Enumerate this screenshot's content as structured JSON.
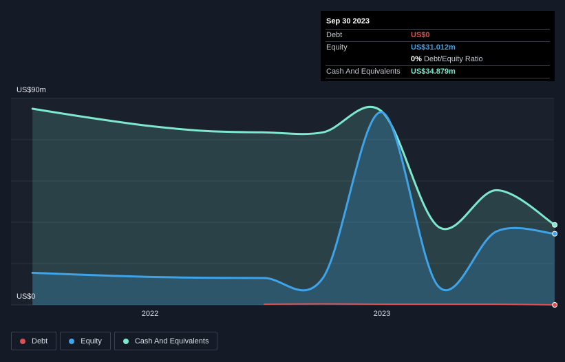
{
  "tooltip": {
    "date": "Sep 30 2023",
    "rows": {
      "debt": {
        "label": "Debt",
        "value": "US$0"
      },
      "equity": {
        "label": "Equity",
        "value": "US$31.012m"
      },
      "ratio": {
        "value": "0%",
        "label": "Debt/Equity Ratio"
      },
      "cash": {
        "label": "Cash And Equivalents",
        "value": "US$34.879m"
      }
    }
  },
  "axis": {
    "y_top_label": "US$90m",
    "y_bottom_label": "US$0",
    "x_ticks": [
      "2022",
      "2023"
    ]
  },
  "legend": {
    "debt": "Debt",
    "equity": "Equity",
    "cash": "Cash And Equivalents"
  },
  "colors": {
    "debt": "#e04f4f",
    "equity": "#3ea3e8",
    "cash": "#7ee8cf",
    "background": "#151b26"
  },
  "chart_data": {
    "type": "area",
    "x_type": "date",
    "ylim": [
      0,
      90
    ],
    "y_unit": "US$m",
    "x_ticks": [
      "2022",
      "2023"
    ],
    "x": [
      "2021-06-30",
      "2021-09-30",
      "2021-12-31",
      "2022-03-31",
      "2022-06-30",
      "2022-09-30",
      "2022-12-31",
      "2023-03-31",
      "2023-06-30",
      "2023-09-30"
    ],
    "series": [
      {
        "name": "Debt",
        "values": [
          null,
          null,
          null,
          null,
          0.3,
          0.5,
          0.3,
          0.3,
          0.3,
          0
        ]
      },
      {
        "name": "Equity",
        "values": [
          14,
          13,
          12.2,
          11.8,
          11.7,
          11.7,
          84,
          8,
          32,
          31.012
        ]
      },
      {
        "name": "Cash And Equivalents",
        "values": [
          85.5,
          81.5,
          78,
          75.8,
          75.2,
          75.2,
          84.5,
          34,
          50,
          34.879
        ]
      }
    ],
    "grid": true,
    "legend": "bottom-left"
  }
}
